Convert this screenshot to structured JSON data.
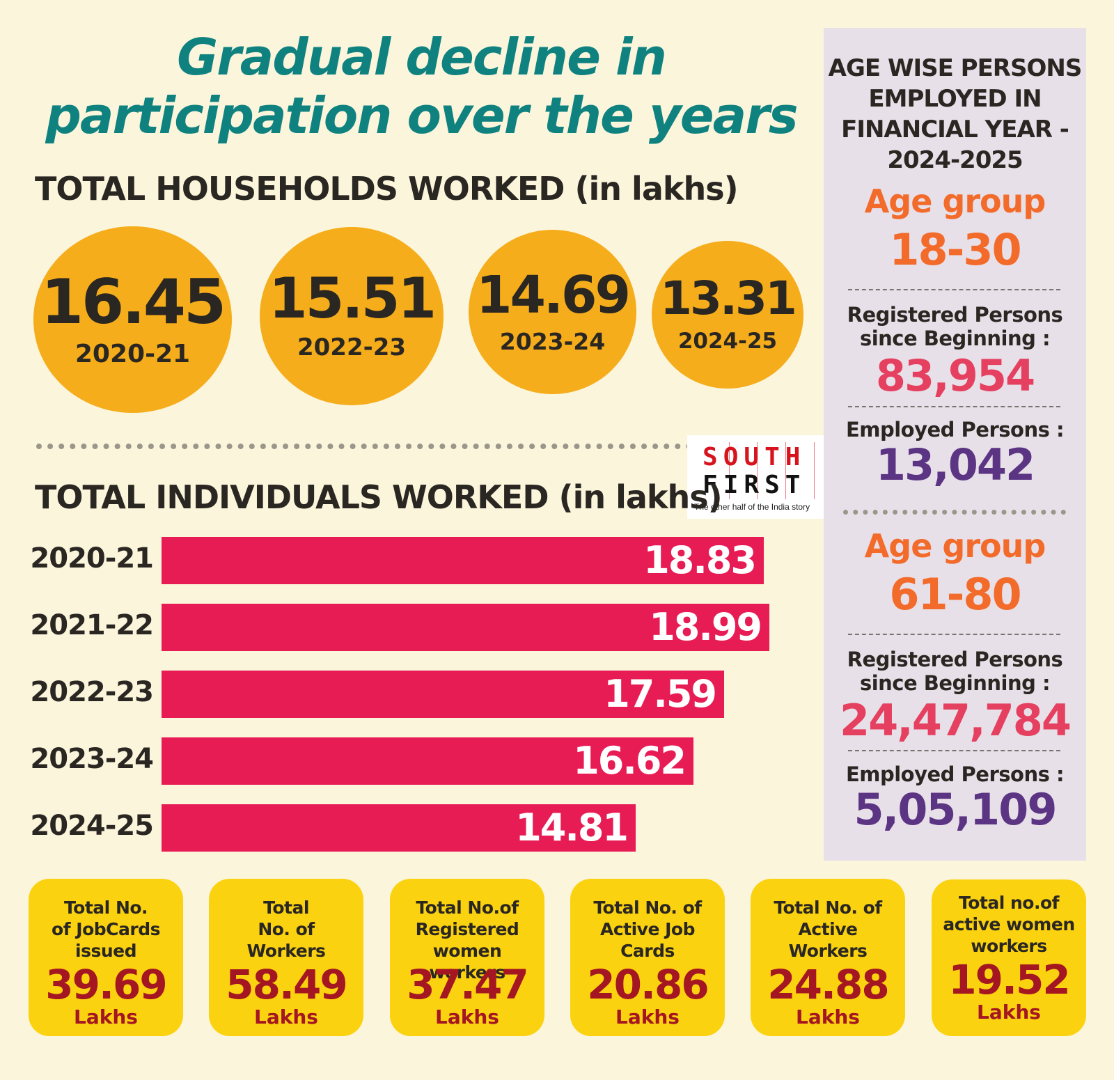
{
  "title_line1": "Gradual decline in",
  "title_line2": "participation over the years",
  "households": {
    "heading": "TOTAL HOUSEHOLDS WORKED (in lakhs)",
    "items": [
      {
        "value": "16.45",
        "year": "2020-21"
      },
      {
        "value": "15.51",
        "year": "2022-23"
      },
      {
        "value": "14.69",
        "year": "2023-24"
      },
      {
        "value": "13.31",
        "year": "2024-25"
      }
    ]
  },
  "logo": {
    "line1": [
      "S",
      "O",
      "U",
      "T",
      "H"
    ],
    "line2": [
      "F",
      "I",
      "R",
      "S",
      "T"
    ],
    "tagline": "The other half of the India story"
  },
  "individuals_heading": "TOTAL INDIVIDUALS WORKED (in lakhs)",
  "chart_data": {
    "type": "bar",
    "title": "TOTAL INDIVIDUALS WORKED (in lakhs)",
    "orientation": "horizontal",
    "categories": [
      "2020-21",
      "2021-22",
      "2022-23",
      "2023-24",
      "2024-25"
    ],
    "values": [
      18.83,
      18.99,
      17.59,
      16.62,
      14.81
    ],
    "labels": [
      "18.83",
      "18.99",
      "17.59",
      "16.62",
      "14.81"
    ],
    "xlabel": "",
    "ylabel": "",
    "bar_color": "#e81c55",
    "grid": false
  },
  "sidebar": {
    "title_lines": [
      "AGE WISE PERSONS",
      "EMPLOYED IN",
      "FINANCIAL YEAR -",
      "2024-2025"
    ],
    "groups": [
      {
        "age_label": "Age group",
        "age_value": "18-30",
        "registered_label_1": "Registered Persons",
        "registered_label_2": "since Beginning :",
        "registered_value": "83,954",
        "employed_label": "Employed Persons :",
        "employed_value": "13,042"
      },
      {
        "age_label": "Age group",
        "age_value": "61-80",
        "registered_label_1": "Registered Persons",
        "registered_label_2": "since Beginning :",
        "registered_value": "24,47,784",
        "employed_label": "Employed Persons :",
        "employed_value": "5,05,109"
      }
    ]
  },
  "cards": [
    {
      "lines": [
        "Total No.",
        "of JobCards",
        "issued"
      ],
      "value": "39.69",
      "unit": "Lakhs"
    },
    {
      "lines": [
        "Total",
        "No. of",
        "Workers"
      ],
      "value": "58.49",
      "unit": "Lakhs"
    },
    {
      "lines": [
        "Total No.of",
        "Registered",
        "women workers"
      ],
      "value": "37.47",
      "unit": "Lakhs"
    },
    {
      "lines": [
        "Total No. of",
        "Active Job",
        "Cards"
      ],
      "value": "20.86",
      "unit": "Lakhs"
    },
    {
      "lines": [
        "Total No. of",
        "Active",
        "Workers"
      ],
      "value": "24.88",
      "unit": "Lakhs"
    },
    {
      "lines": [
        "Total no.of",
        "active women",
        "workers"
      ],
      "value": "19.52",
      "unit": "Lakhs"
    }
  ],
  "colors": {
    "background": "#fbf5dc",
    "title": "#0f8280",
    "circle": "#f6ad1b",
    "bar": "#e81c55",
    "sidebar": "#e8e0e8",
    "age": "#f26b2b",
    "registered": "#e54060",
    "employed": "#5b3483",
    "card": "#fbd20f",
    "card_value": "#a31622"
  }
}
